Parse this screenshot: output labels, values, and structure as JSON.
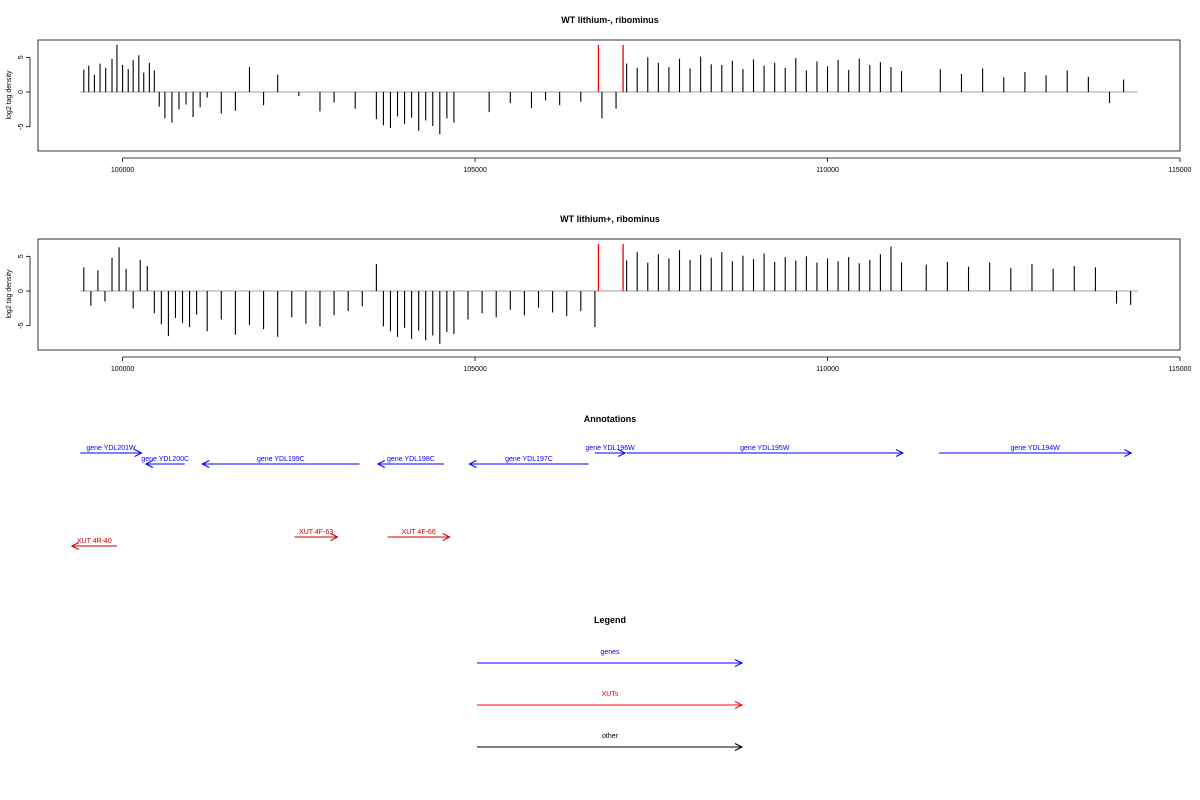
{
  "chart_data": [
    {
      "type": "bar",
      "title": "WT lithium-, ribominus",
      "xlabel": "",
      "ylabel": "log2 tag density",
      "xlim": [
        98800,
        115000
      ],
      "ylim": [
        -8.5,
        7.5
      ],
      "xticks": [
        100000,
        105000,
        110000,
        115000
      ],
      "xtick_labels": [
        "100000",
        "105000",
        "110000",
        "115000"
      ],
      "yticks": [
        -5,
        0,
        5
      ],
      "ytick_labels": [
        "-5",
        "0",
        "5"
      ],
      "baseline": {
        "x": [
          99400,
          114400
        ],
        "y": 0
      },
      "highlight_bars": [
        {
          "x": 106750,
          "y": 6.8,
          "color": "#ff0000"
        },
        {
          "x": 107100,
          "y": 6.8,
          "color": "#ff0000"
        }
      ],
      "x": [
        99450,
        99520,
        99600,
        99680,
        99760,
        99850,
        99920,
        100000,
        100080,
        100150,
        100230,
        100300,
        100380,
        100450,
        100520,
        100600,
        100700,
        100800,
        100900,
        101000,
        101100,
        101200,
        101400,
        101600,
        101800,
        102000,
        102200,
        102500,
        102800,
        103000,
        103300,
        103600,
        103700,
        103800,
        103900,
        104000,
        104100,
        104200,
        104300,
        104400,
        104500,
        104600,
        104700,
        105200,
        105500,
        105800,
        106000,
        106200,
        106500,
        106800,
        107000,
        107150,
        107300,
        107450,
        107600,
        107750,
        107900,
        108050,
        108200,
        108350,
        108500,
        108650,
        108800,
        108950,
        109100,
        109250,
        109400,
        109550,
        109700,
        109850,
        110000,
        110150,
        110300,
        110450,
        110600,
        110750,
        110900,
        111050,
        111600,
        111900,
        112200,
        112500,
        112800,
        113100,
        113400,
        113700,
        114000,
        114200
      ],
      "y": [
        3.2,
        3.8,
        2.5,
        4.1,
        3.5,
        4.8,
        6.8,
        3.9,
        3.3,
        4.6,
        5.3,
        2.8,
        4.2,
        3.1,
        -2.1,
        -3.8,
        -4.4,
        -2.5,
        -1.8,
        -3.6,
        -2.2,
        -0.8,
        -3.1,
        -2.7,
        3.6,
        -1.9,
        2.5,
        -0.6,
        -2.8,
        -1.5,
        -2.4,
        -3.9,
        -4.8,
        -5.2,
        -3.5,
        -4.6,
        -3.7,
        -5.6,
        -4.1,
        -4.9,
        -6.1,
        -3.8,
        -4.4,
        -2.9,
        -1.6,
        -2.3,
        -1.2,
        -1.9,
        -1.4,
        -3.8,
        -2.4,
        4.1,
        3.5,
        5.0,
        4.2,
        3.6,
        4.8,
        3.4,
        5.1,
        4.0,
        3.9,
        4.5,
        3.3,
        4.7,
        3.8,
        4.2,
        3.5,
        4.9,
        3.1,
        4.4,
        3.7,
        4.6,
        3.2,
        4.8,
        3.9,
        4.3,
        3.6,
        3.0,
        3.3,
        2.6,
        3.4,
        2.1,
        2.9,
        2.4,
        3.1,
        2.2,
        -1.6,
        1.8
      ]
    },
    {
      "type": "bar",
      "title": "WT lithium+, ribominus",
      "xlabel": "",
      "ylabel": "log2 tag density",
      "xlim": [
        98800,
        115000
      ],
      "ylim": [
        -8.5,
        7.5
      ],
      "xticks": [
        100000,
        105000,
        110000,
        115000
      ],
      "xtick_labels": [
        "100000",
        "105000",
        "110000",
        "115000"
      ],
      "yticks": [
        -5,
        0,
        5
      ],
      "ytick_labels": [
        "-5",
        "0",
        "5"
      ],
      "baseline": {
        "x": [
          99400,
          114400
        ],
        "y": 0
      },
      "highlight_bars": [
        {
          "x": 106750,
          "y": 6.8,
          "color": "#ff0000"
        },
        {
          "x": 107100,
          "y": 6.8,
          "color": "#ff0000"
        }
      ],
      "x": [
        99450,
        99550,
        99650,
        99750,
        99850,
        99950,
        100050,
        100150,
        100250,
        100350,
        100450,
        100550,
        100650,
        100750,
        100850,
        100950,
        101050,
        101200,
        101400,
        101600,
        101800,
        102000,
        102200,
        102400,
        102600,
        102800,
        103000,
        103200,
        103400,
        103600,
        103700,
        103800,
        103900,
        104000,
        104100,
        104200,
        104300,
        104400,
        104500,
        104600,
        104700,
        104900,
        105100,
        105300,
        105500,
        105700,
        105900,
        106100,
        106300,
        106500,
        106700,
        107150,
        107300,
        107450,
        107600,
        107750,
        107900,
        108050,
        108200,
        108350,
        108500,
        108650,
        108800,
        108950,
        109100,
        109250,
        109400,
        109550,
        109700,
        109850,
        110000,
        110150,
        110300,
        110450,
        110600,
        110750,
        110900,
        111050,
        111400,
        111700,
        112000,
        112300,
        112600,
        112900,
        113200,
        113500,
        113800,
        114100,
        114300
      ],
      "y": [
        3.4,
        -2.1,
        3.0,
        -1.5,
        4.8,
        6.3,
        3.2,
        -2.5,
        4.5,
        3.6,
        -3.2,
        -4.8,
        -6.5,
        -3.9,
        -4.6,
        -5.2,
        -3.4,
        -5.8,
        -4.1,
        -6.3,
        -4.9,
        -5.5,
        -6.6,
        -3.8,
        -4.7,
        -5.1,
        -3.5,
        -2.9,
        -2.2,
        3.9,
        -5.1,
        -5.8,
        -6.6,
        -5.3,
        -6.9,
        -5.7,
        -7.1,
        -6.4,
        -7.6,
        -5.9,
        -6.2,
        -4.1,
        -3.2,
        -3.8,
        -2.7,
        -3.5,
        -2.4,
        -3.1,
        -3.6,
        -2.9,
        -5.2,
        4.4,
        5.6,
        4.1,
        5.3,
        4.7,
        5.9,
        4.5,
        5.2,
        4.8,
        5.6,
        4.3,
        5.1,
        4.6,
        5.4,
        4.2,
        4.9,
        4.4,
        5.0,
        4.1,
        4.7,
        4.3,
        4.9,
        4.0,
        4.5,
        5.3,
        6.4,
        4.1,
        3.8,
        4.2,
        3.5,
        4.1,
        3.3,
        3.9,
        3.2,
        3.6,
        3.4,
        -1.8,
        -2.0
      ]
    }
  ],
  "annotations": {
    "title": "Annotations",
    "genes": [
      {
        "label": "gene YDL201W",
        "start": 99400,
        "end": 100270,
        "strand": "+",
        "row": 0
      },
      {
        "label": "gene YDL200C",
        "start": 100330,
        "end": 100880,
        "strand": "-",
        "row": 1
      },
      {
        "label": "gene YDL199C",
        "start": 101130,
        "end": 103360,
        "strand": "-",
        "row": 1
      },
      {
        "label": "gene YDL198C",
        "start": 103620,
        "end": 104560,
        "strand": "-",
        "row": 1
      },
      {
        "label": "gene YDL197C",
        "start": 104920,
        "end": 106610,
        "strand": "-",
        "row": 1
      },
      {
        "label": "gene YDL196W",
        "start": 106700,
        "end": 107130,
        "strand": "+",
        "row": 0
      },
      {
        "label": "gene YDL195W",
        "start": 107150,
        "end": 111070,
        "strand": "+",
        "row": 0
      },
      {
        "label": "gene YDL194W",
        "start": 111580,
        "end": 114310,
        "strand": "+",
        "row": 0
      }
    ],
    "xuts": [
      {
        "label": "XUT 4R-40",
        "start": 99280,
        "end": 99920,
        "strand": "-"
      },
      {
        "label": "XUT 4F-63",
        "start": 102440,
        "end": 103050,
        "strand": "+"
      },
      {
        "label": "XUT 4F-66",
        "start": 103760,
        "end": 104640,
        "strand": "+"
      }
    ]
  },
  "legend": {
    "title": "Legend",
    "items": [
      {
        "label": "genes",
        "color": "#0000ff"
      },
      {
        "label": "XUTs",
        "color": "#ff0000"
      },
      {
        "label": "other",
        "color": "#000000"
      }
    ]
  },
  "colors": {
    "gene": "#0000ff",
    "xut": "#cc0000",
    "bar": "#000000",
    "highlight": "#ff0000",
    "baseline": "#808080"
  }
}
